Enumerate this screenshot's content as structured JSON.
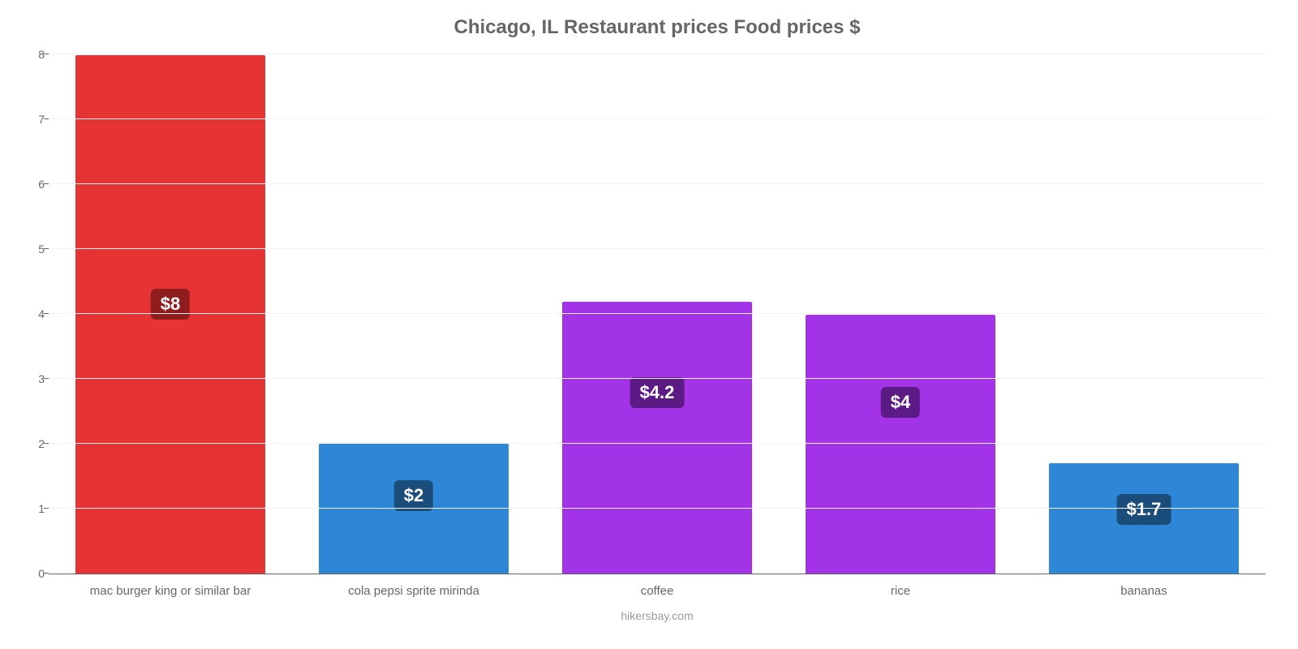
{
  "chart": {
    "type": "bar",
    "title": "Chicago, IL Restaurant prices Food prices $",
    "title_color": "#666666",
    "title_fontsize": 24,
    "background_color": "#ffffff",
    "grid_color": "#f2f2f2",
    "axis_color": "#666666",
    "label_color": "#666666",
    "label_fontsize": 15,
    "ylim_min": 0,
    "ylim_max": 8,
    "ytick_step": 1,
    "yticks": [
      0,
      1,
      2,
      3,
      4,
      5,
      6,
      7,
      8
    ],
    "bar_width_pct": 78,
    "categories": [
      "mac burger king or similar bar",
      "cola pepsi sprite mirinda",
      "coffee",
      "rice",
      "bananas"
    ],
    "values": [
      8,
      2,
      4.2,
      4,
      1.7
    ],
    "value_labels": [
      "$8",
      "$2",
      "$4.2",
      "$4",
      "$1.7"
    ],
    "bar_colors": [
      "#e63333",
      "#2e86d6",
      "#a233e6",
      "#a233e6",
      "#2e86d6"
    ],
    "badge_colors": [
      "#8f1d1d",
      "#1a4d7a",
      "#5c1a85",
      "#5c1a85",
      "#1a4d7a"
    ],
    "badge_fontsize": 22,
    "credit": "hikersbay.com",
    "credit_color": "#999999",
    "credit_fontsize": 14
  }
}
